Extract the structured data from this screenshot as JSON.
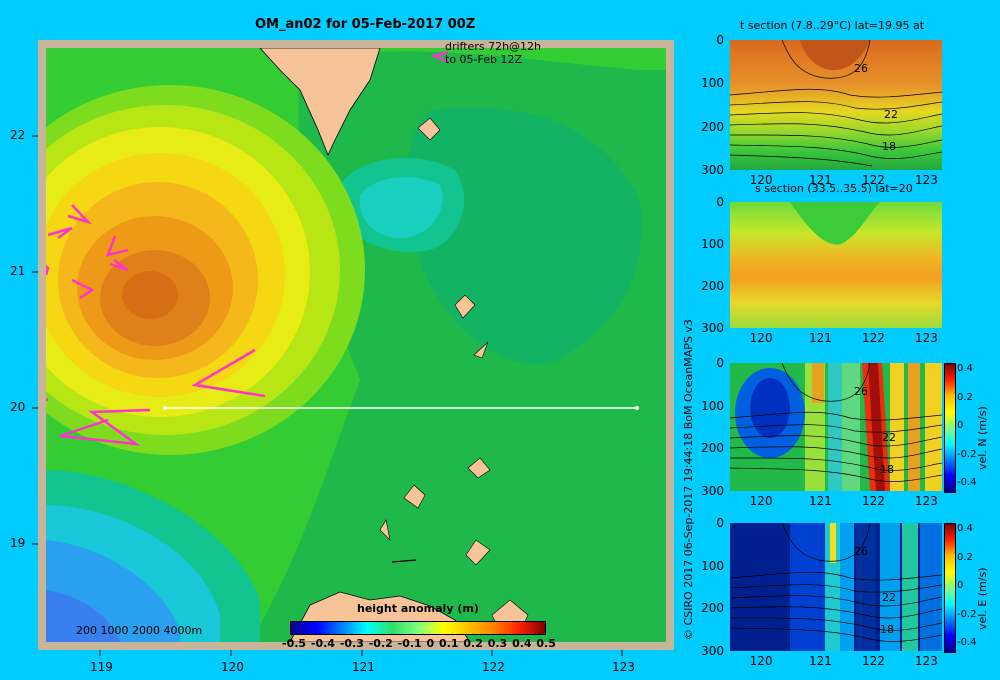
{
  "map": {
    "title": "OM_an02 for 05-Feb-2017 00Z",
    "drifter_note_line1": "drifters 72h@12h",
    "drifter_note_line2": "to 05-Feb 12Z",
    "lon_ticks": [
      "119",
      "120",
      "121",
      "122",
      "123"
    ],
    "lat_ticks": [
      "22",
      "21",
      "20",
      "19"
    ],
    "depth_legend": "200  1000  2000  4000m",
    "colorbar_title": "height anomaly (m)",
    "colorbar_ticks": [
      "-0.5",
      "-0.4",
      "-0.3",
      "-0.2",
      "-0.1",
      "0",
      "0.1",
      "0.2",
      "0.3",
      "0.4",
      "0.5"
    ],
    "section_line_label": "",
    "colors": {
      "land": "#f7c49a",
      "frame": "#c8b49a",
      "drifter": "#ff33cc",
      "section_line": "#ffffff"
    }
  },
  "credit": "© CSIRO 2017   06-Sep-2017 19:44:18 BoM OceanMAPS v3",
  "panels": [
    {
      "title": "t section (7.8..29°C) lat=19.95 at",
      "y_ticks": [
        "0",
        "100",
        "200",
        "300"
      ],
      "x_ticks": [
        "120",
        "121",
        "122",
        "123"
      ],
      "contour_labels": [
        "26",
        "22",
        "18"
      ],
      "colorbar_label": "",
      "colorbar_ticks": []
    },
    {
      "title": "s section (33.5..35.5) lat=20",
      "y_ticks": [
        "0",
        "100",
        "200",
        "300"
      ],
      "x_ticks": [
        "120",
        "121",
        "122",
        "123"
      ],
      "contour_labels": [],
      "colorbar_label": "",
      "colorbar_ticks": []
    },
    {
      "title": "",
      "y_ticks": [
        "0",
        "100",
        "200",
        "300"
      ],
      "x_ticks": [
        "120",
        "121",
        "122",
        "123"
      ],
      "contour_labels": [
        "26",
        "22",
        "18"
      ],
      "colorbar_label": "vel. N (m/s)",
      "colorbar_ticks": [
        "0.4",
        "0.2",
        "0",
        "-0.2",
        "-0.4"
      ]
    },
    {
      "title": "",
      "y_ticks": [
        "0",
        "100",
        "200",
        "300"
      ],
      "x_ticks": [
        "120",
        "121",
        "122",
        "123"
      ],
      "contour_labels": [
        "26",
        "22",
        "18"
      ],
      "colorbar_label": "vel. E (m/s)",
      "colorbar_ticks": [
        "0.4",
        "0.2",
        "0",
        "-0.2",
        "-0.4"
      ]
    }
  ]
}
